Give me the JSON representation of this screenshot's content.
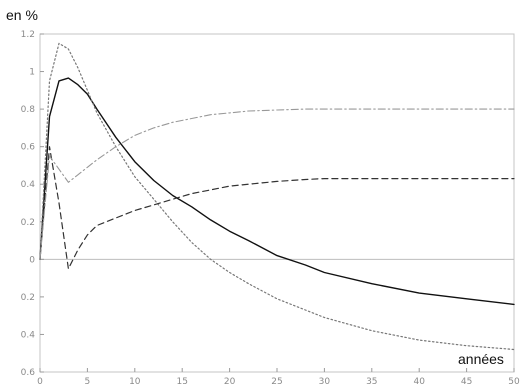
{
  "chart_data": {
    "type": "line",
    "ylabel": "en %",
    "xlabel": "années",
    "xlim": [
      0,
      50
    ],
    "ylim": [
      -0.6,
      1.2
    ],
    "x_ticks": [
      0,
      5,
      10,
      15,
      20,
      25,
      30,
      35,
      40,
      45,
      50
    ],
    "y_ticks": [
      1.2,
      1,
      0.8,
      0.6,
      0.4,
      0.2,
      0,
      -0.2,
      -0.4,
      -0.6
    ],
    "x_tick_labels": [
      "0",
      "5",
      "10",
      "15",
      "20",
      "25",
      "30",
      "35",
      "40",
      "45",
      "50"
    ],
    "y_tick_labels": [
      "1.2",
      "1",
      "0.8",
      "0.6",
      "0.4",
      "0.2",
      "0",
      "0.2",
      "0.4",
      "0.6"
    ],
    "grid": false,
    "legend": "none",
    "series": [
      {
        "style": "solid",
        "color": "#111111",
        "x": [
          0,
          1,
          2,
          3,
          4,
          5,
          6,
          8,
          10,
          12,
          14,
          16,
          18,
          20,
          22,
          25,
          28,
          30,
          35,
          40,
          45,
          50
        ],
        "y": [
          0,
          0.76,
          0.95,
          0.965,
          0.93,
          0.88,
          0.8,
          0.65,
          0.52,
          0.42,
          0.34,
          0.28,
          0.21,
          0.15,
          0.1,
          0.02,
          -0.03,
          -0.07,
          -0.13,
          -0.18,
          -0.21,
          -0.24
        ]
      },
      {
        "style": "dotted",
        "color": "#777777",
        "x": [
          0,
          1,
          2,
          3,
          4,
          5,
          6,
          8,
          10,
          12,
          14,
          16,
          18,
          20,
          22,
          25,
          28,
          30,
          35,
          40,
          45,
          50
        ],
        "y": [
          0,
          0.95,
          1.15,
          1.12,
          1.02,
          0.9,
          0.78,
          0.6,
          0.44,
          0.32,
          0.2,
          0.09,
          0.0,
          -0.07,
          -0.13,
          -0.21,
          -0.27,
          -0.31,
          -0.38,
          -0.43,
          -0.46,
          -0.48
        ]
      },
      {
        "style": "dashed",
        "color": "#333333",
        "x": [
          0,
          1,
          2,
          3,
          4,
          5,
          6,
          8,
          10,
          12,
          14,
          16,
          18,
          20,
          22,
          25,
          28,
          30,
          35,
          40,
          45,
          50
        ],
        "y": [
          0,
          0.6,
          0.3,
          -0.05,
          0.05,
          0.13,
          0.18,
          0.22,
          0.26,
          0.29,
          0.32,
          0.35,
          0.37,
          0.39,
          0.4,
          0.415,
          0.425,
          0.43,
          0.43,
          0.43,
          0.43,
          0.43
        ]
      },
      {
        "style": "dash-dot",
        "color": "#999999",
        "x": [
          0,
          1,
          2,
          3,
          4,
          5,
          6,
          8,
          10,
          12,
          14,
          16,
          18,
          20,
          22,
          25,
          28,
          30,
          35,
          40,
          45,
          50
        ],
        "y": [
          0,
          0.55,
          0.48,
          0.41,
          0.45,
          0.49,
          0.53,
          0.6,
          0.66,
          0.7,
          0.73,
          0.75,
          0.77,
          0.78,
          0.79,
          0.795,
          0.8,
          0.8,
          0.8,
          0.8,
          0.8,
          0.8
        ]
      }
    ]
  }
}
